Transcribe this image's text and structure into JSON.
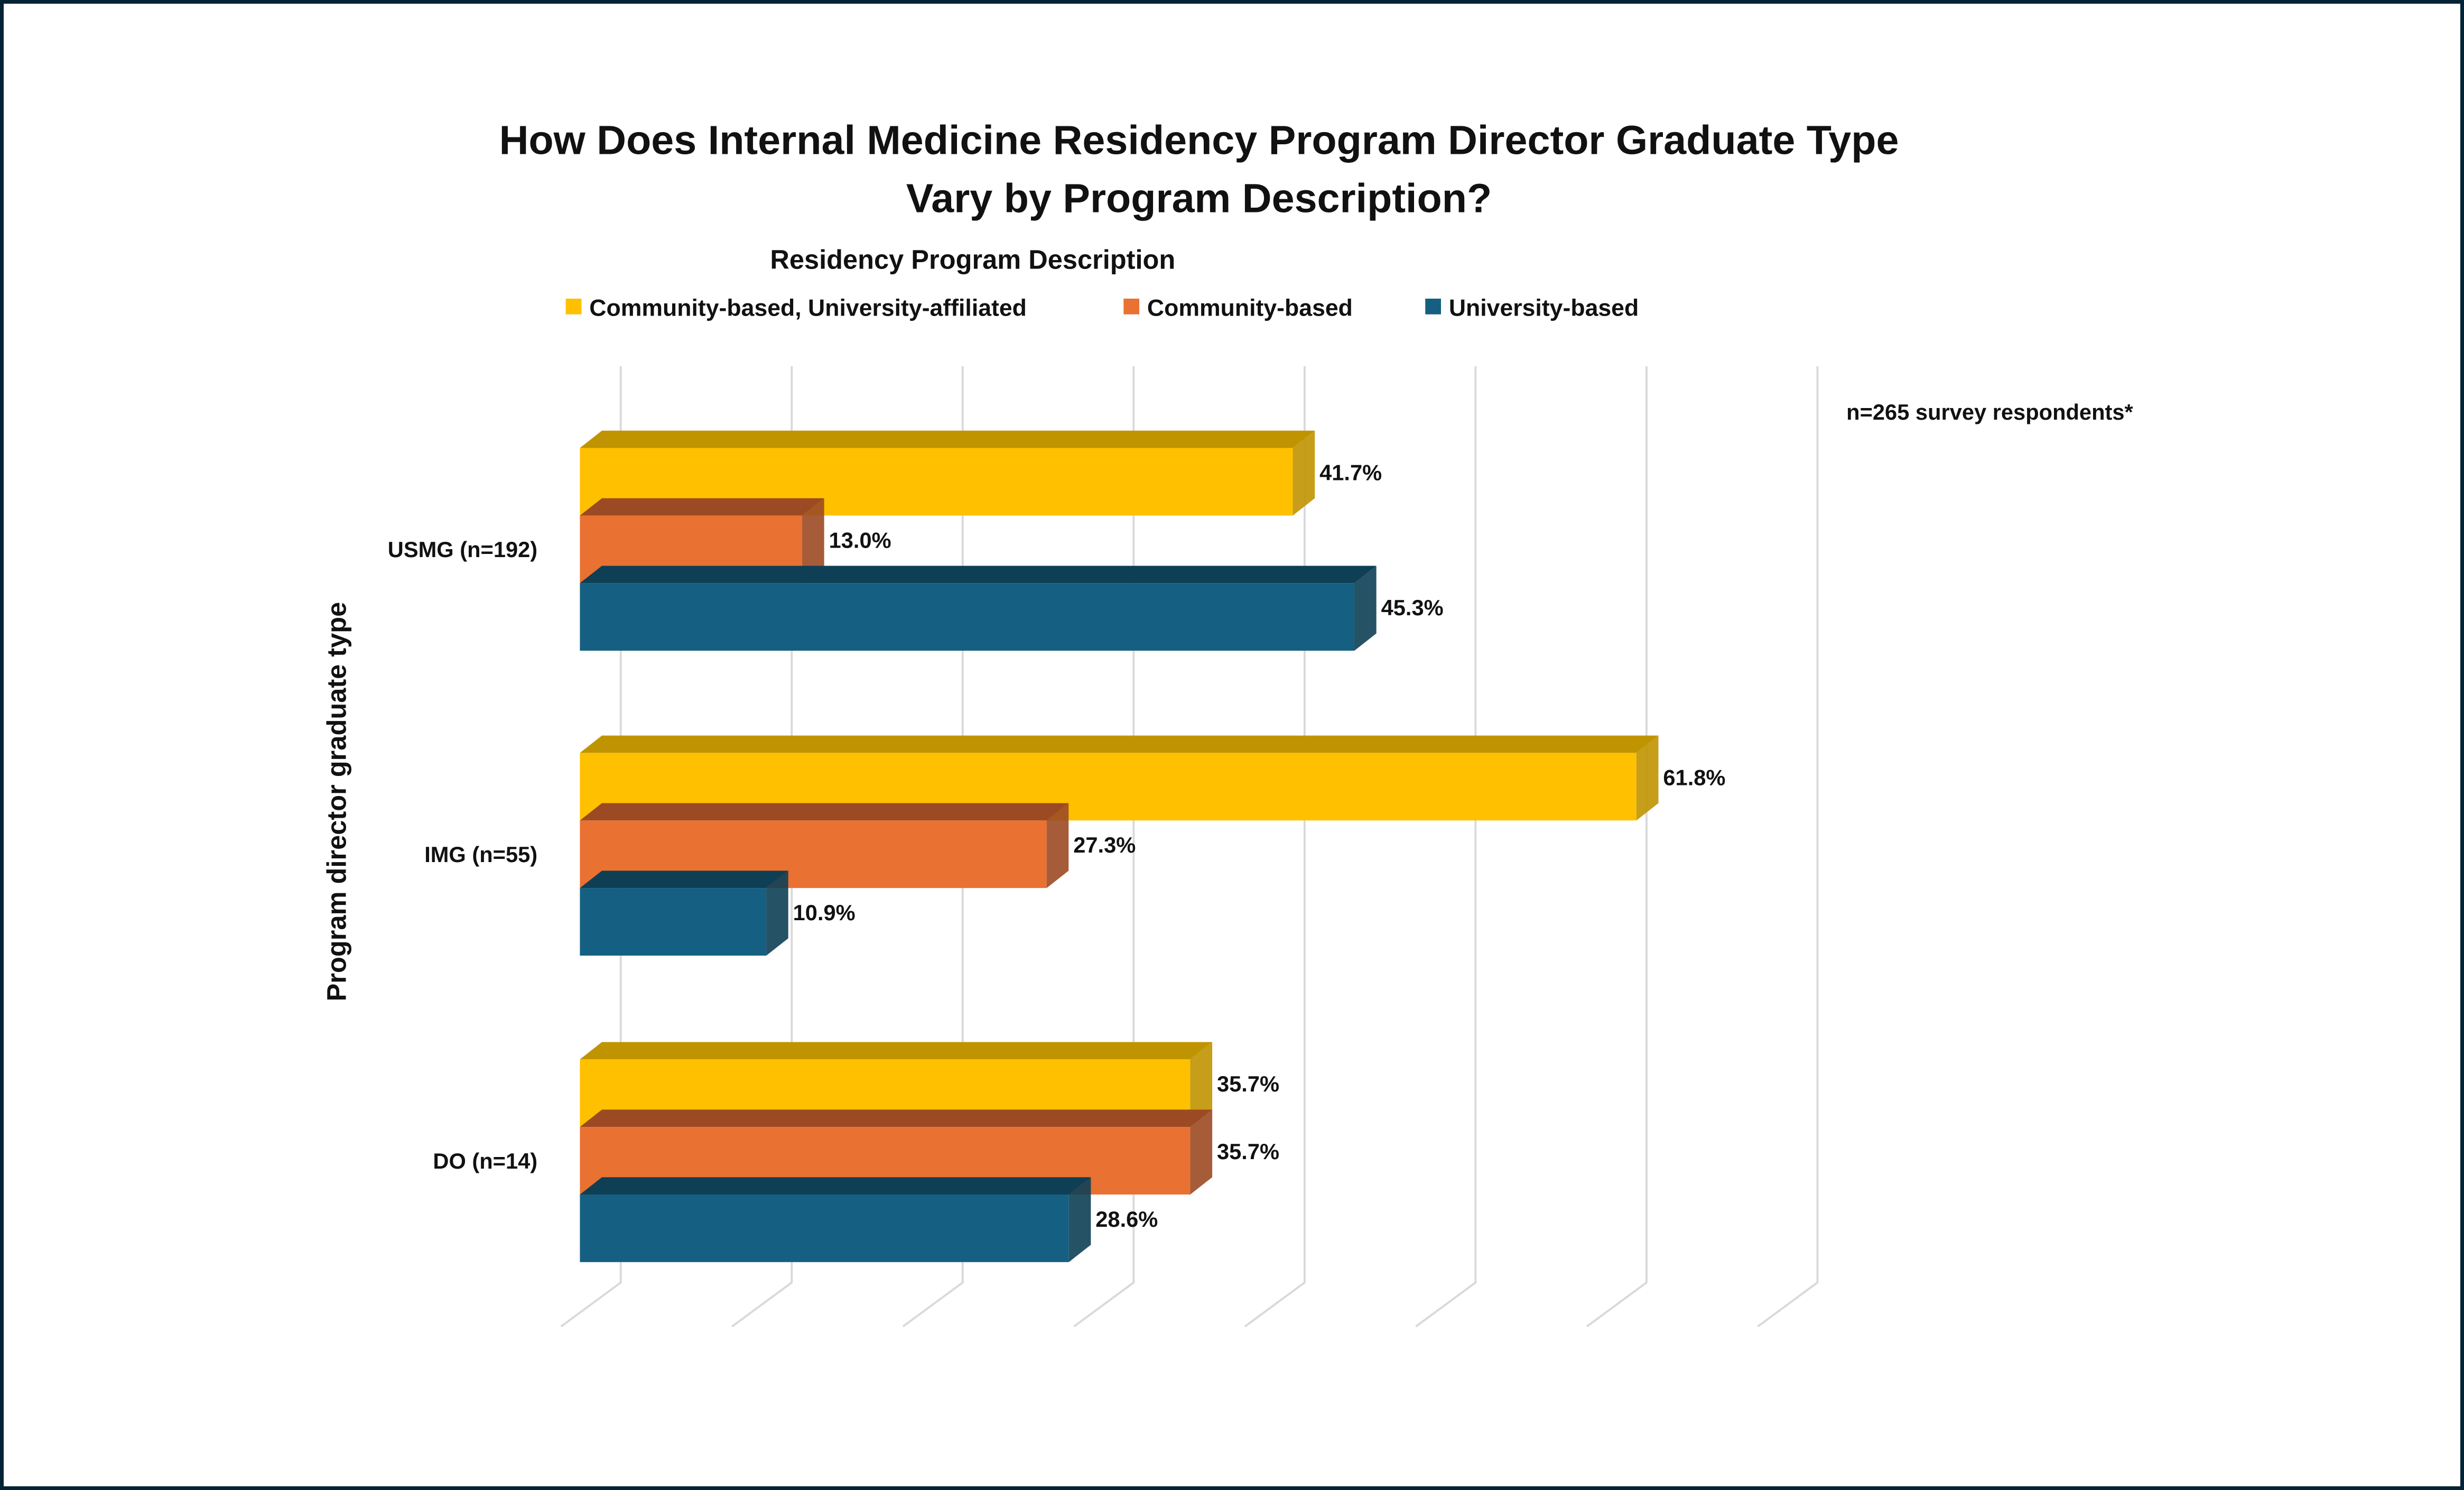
{
  "chart_data": {
    "type": "bar",
    "orientation": "horizontal",
    "style": "3d-clustered",
    "title_lines": [
      "How Does Internal Medicine Residency Program Director Graduate Type",
      "Vary by Program Description?"
    ],
    "legend_title": "Residency Program Description",
    "legend_placement": "top",
    "ylabel": "Program director graduate type",
    "xlabel": "",
    "xlim": [
      0,
      70
    ],
    "x_tick_step": 10,
    "x_tick_labels_shown": false,
    "grid": true,
    "annotation": "n=265 survey respondents*",
    "categories": [
      "USMG (n=192)",
      "IMG (n=55)",
      "DO (n=14)"
    ],
    "series": [
      {
        "name": "Community-based, University-affiliated",
        "color": "#FFC000",
        "values": [
          41.7,
          61.8,
          35.7
        ],
        "labels": [
          "41.7%",
          "61.8%",
          "35.7%"
        ]
      },
      {
        "name": "Community-based",
        "color": "#E97132",
        "values": [
          13.0,
          27.3,
          35.7
        ],
        "labels": [
          "13.0%",
          "27.3%",
          "35.7%"
        ]
      },
      {
        "name": "University-based",
        "color": "#156082",
        "values": [
          45.3,
          10.9,
          28.6
        ],
        "labels": [
          "45.3%",
          "10.9%",
          "28.6%"
        ]
      }
    ]
  },
  "colors": {
    "frame": "#042335",
    "grid": "#D9D9D9",
    "shade": [
      "#C09400",
      "#9C4A23",
      "#0E3F55"
    ]
  }
}
